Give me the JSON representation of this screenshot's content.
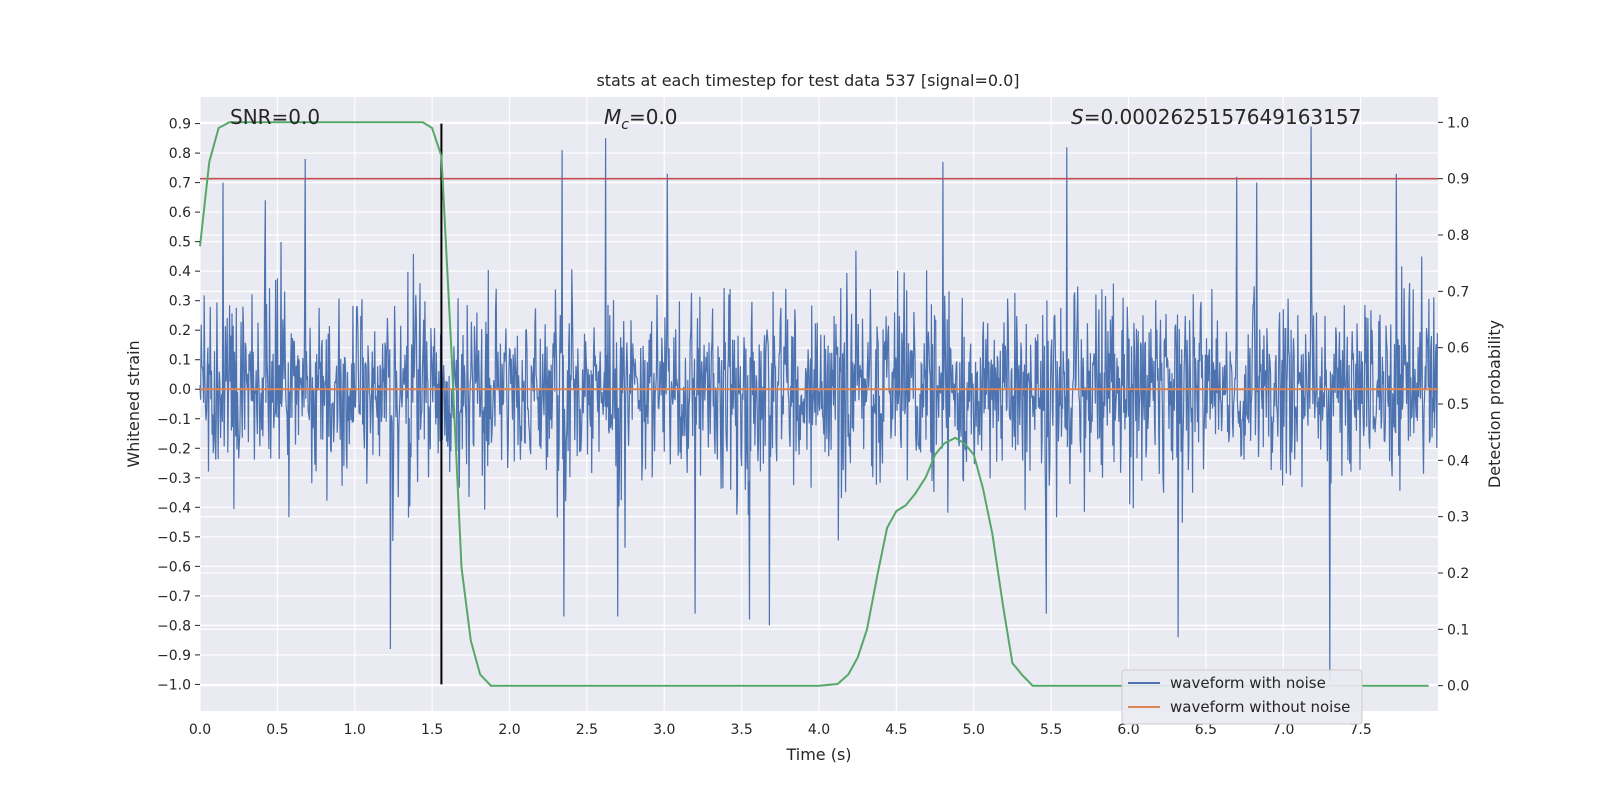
{
  "chart_data": {
    "type": "line",
    "title": "stats at each timestep for test data 537 [signal=0.0]",
    "xlabel": "Time (s)",
    "ylabel": "Whitened strain",
    "y2label": "Detection probability",
    "xlim": [
      0.0,
      8.0
    ],
    "ylim": [
      -1.09,
      0.99
    ],
    "y2lim": [
      -0.045,
      1.045
    ],
    "x_ticks": [
      "0.0",
      "0.5",
      "1.0",
      "1.5",
      "2.0",
      "2.5",
      "3.0",
      "3.5",
      "4.0",
      "4.5",
      "5.0",
      "5.5",
      "6.0",
      "6.5",
      "7.0",
      "7.5"
    ],
    "y_ticks": [
      "0.9",
      "0.8",
      "0.7",
      "0.6",
      "0.5",
      "0.4",
      "0.3",
      "0.2",
      "0.1",
      "0.0",
      "-0.1",
      "-0.2",
      "-0.3",
      "-0.4",
      "-0.5",
      "-0.6",
      "-0.7",
      "-0.8",
      "-0.9",
      "-1.0"
    ],
    "y2_ticks": [
      "1.0",
      "0.9",
      "0.8",
      "0.7",
      "0.6",
      "0.5",
      "0.4",
      "0.3",
      "0.2",
      "0.1",
      "0.0"
    ],
    "grid": true,
    "legend_position": "lower-right",
    "annotations": {
      "snr": "SNR=0.0",
      "mc_symbol": "M",
      "mc_sub": "c",
      "mc_rest": "=0.0",
      "s_symbol": "S",
      "s_rest": "=0.0002625157649163157"
    },
    "series": [
      {
        "name": "waveform with noise",
        "color": "#4c72b0",
        "axis": "left",
        "noise_std": 0.16,
        "sample_rate": 256,
        "peaks": [
          [
            0.15,
            0.7
          ],
          [
            0.42,
            0.64
          ],
          [
            0.68,
            0.78
          ],
          [
            1.23,
            -0.88
          ],
          [
            2.34,
            0.81
          ],
          [
            2.62,
            0.85
          ],
          [
            3.02,
            0.73
          ],
          [
            3.68,
            -0.8
          ],
          [
            4.8,
            0.77
          ],
          [
            5.6,
            0.82
          ],
          [
            7.18,
            0.89
          ],
          [
            7.3,
            -0.99
          ],
          [
            6.32,
            -0.84
          ],
          [
            5.47,
            -0.76
          ],
          [
            2.35,
            -0.77
          ],
          [
            2.7,
            -0.77
          ],
          [
            3.2,
            -0.76
          ],
          [
            3.55,
            -0.78
          ],
          [
            7.73,
            0.73
          ],
          [
            6.83,
            0.7
          ],
          [
            6.7,
            0.72
          ]
        ]
      },
      {
        "name": "waveform without noise",
        "color": "#dd8452",
        "axis": "left",
        "x": [
          0.0,
          8.0
        ],
        "y": [
          0.0,
          0.0
        ]
      },
      {
        "color": "#55a868",
        "axis": "right",
        "x": [
          0.0,
          0.06,
          0.12,
          0.19,
          0.25,
          0.5,
          0.75,
          1.0,
          1.25,
          1.44,
          1.5,
          1.56,
          1.62,
          1.69,
          1.75,
          1.81,
          1.88,
          1.94,
          2.0,
          3.0,
          4.0,
          4.12,
          4.19,
          4.25,
          4.31,
          4.38,
          4.44,
          4.5,
          4.56,
          4.62,
          4.69,
          4.75,
          4.81,
          4.88,
          4.94,
          5.0,
          5.06,
          5.12,
          5.19,
          5.25,
          5.31,
          5.38,
          6.0,
          7.0,
          7.94
        ],
        "y": [
          0.78,
          0.93,
          0.99,
          1.0,
          1.0,
          1.0,
          1.0,
          1.0,
          1.0,
          1.0,
          0.99,
          0.94,
          0.62,
          0.21,
          0.08,
          0.02,
          0.0,
          0.0,
          0.0,
          0.0,
          0.0,
          0.003,
          0.02,
          0.05,
          0.1,
          0.2,
          0.28,
          0.31,
          0.32,
          0.34,
          0.37,
          0.41,
          0.43,
          0.44,
          0.43,
          0.41,
          0.35,
          0.27,
          0.14,
          0.04,
          0.02,
          0.0,
          0.0,
          0.0,
          0.0
        ]
      }
    ],
    "threshold": {
      "axis": "right",
      "y": 0.9,
      "color": "#c44e52"
    },
    "marker_time": 1.56
  }
}
